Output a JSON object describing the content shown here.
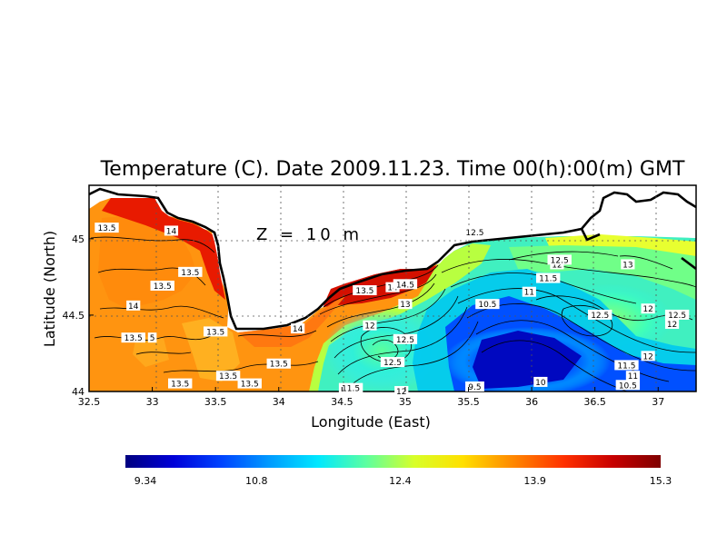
{
  "chart_data": {
    "type": "heatmap",
    "title": "Temperature (C). Date 2009.11.23. Time 00(h):00(m) GMT",
    "xlabel": "Longitude (East)",
    "ylabel": "Latitude (North)",
    "depth_label": "Z = 10 m",
    "xlim": [
      32.5,
      37.3
    ],
    "ylim": [
      44.0,
      45.35
    ],
    "x_ticks": [
      "32.5",
      "33",
      "33.5",
      "34",
      "34.5",
      "35",
      "35.5",
      "36",
      "36.5",
      "37"
    ],
    "y_ticks": [
      "44",
      "44.5",
      "45"
    ],
    "colorbar": {
      "min": 9.34,
      "max": 15.3,
      "tick_labels": [
        "9.34",
        "10.8",
        "12.4",
        "13.9",
        "15.3"
      ]
    },
    "contour_labels": [
      {
        "text": "13.5",
        "lon": 32.64,
        "lat": 45.07
      },
      {
        "text": "14",
        "lon": 33.15,
        "lat": 45.05
      },
      {
        "text": "13.5",
        "lon": 33.3,
        "lat": 44.78
      },
      {
        "text": "13.5",
        "lon": 33.08,
        "lat": 44.69
      },
      {
        "text": "14",
        "lon": 32.85,
        "lat": 44.56
      },
      {
        "text": "13.5",
        "lon": 32.85,
        "lat": 44.35
      },
      {
        "text": "5",
        "lon": 33.0,
        "lat": 44.35
      },
      {
        "text": "13.5",
        "lon": 33.5,
        "lat": 44.39
      },
      {
        "text": "14",
        "lon": 34.15,
        "lat": 44.41
      },
      {
        "text": "13.5",
        "lon": 34.0,
        "lat": 44.18
      },
      {
        "text": "13.5",
        "lon": 33.6,
        "lat": 44.1
      },
      {
        "text": "13.5",
        "lon": 33.77,
        "lat": 44.05
      },
      {
        "text": "13.5",
        "lon": 33.22,
        "lat": 44.05
      },
      {
        "text": "11.5",
        "lon": 34.57,
        "lat": 44.02
      },
      {
        "text": "12",
        "lon": 34.97,
        "lat": 44.0
      },
      {
        "text": "12.5",
        "lon": 34.9,
        "lat": 44.19
      },
      {
        "text": "12.5",
        "lon": 35.0,
        "lat": 44.34
      },
      {
        "text": "12",
        "lon": 34.72,
        "lat": 44.43
      },
      {
        "text": "13.5",
        "lon": 34.68,
        "lat": 44.66
      },
      {
        "text": "14",
        "lon": 34.9,
        "lat": 44.68
      },
      {
        "text": "14.5",
        "lon": 35.0,
        "lat": 44.7
      },
      {
        "text": "13",
        "lon": 35.0,
        "lat": 44.57
      },
      {
        "text": "12.5",
        "lon": 35.55,
        "lat": 45.04
      },
      {
        "text": "10.5",
        "lon": 35.65,
        "lat": 44.57
      },
      {
        "text": "11",
        "lon": 35.98,
        "lat": 44.65
      },
      {
        "text": "11.5",
        "lon": 36.13,
        "lat": 44.74
      },
      {
        "text": "12",
        "lon": 36.2,
        "lat": 44.83
      },
      {
        "text": "12.5",
        "lon": 36.22,
        "lat": 44.86
      },
      {
        "text": "13",
        "lon": 36.76,
        "lat": 44.83
      },
      {
        "text": "12.5",
        "lon": 36.54,
        "lat": 44.5
      },
      {
        "text": "12",
        "lon": 36.92,
        "lat": 44.54
      },
      {
        "text": "12.5",
        "lon": 37.15,
        "lat": 44.5
      },
      {
        "text": "12",
        "lon": 37.11,
        "lat": 44.44
      },
      {
        "text": "12",
        "lon": 36.92,
        "lat": 44.23
      },
      {
        "text": "11.5",
        "lon": 36.75,
        "lat": 44.17
      },
      {
        "text": "11",
        "lon": 36.8,
        "lat": 44.1
      },
      {
        "text": "10.5",
        "lon": 36.76,
        "lat": 44.04
      },
      {
        "text": "10",
        "lon": 36.07,
        "lat": 44.06
      },
      {
        "text": "9.5",
        "lon": 35.55,
        "lat": 44.03
      }
    ],
    "colors": {
      "ramp": [
        "#00007f",
        "#0000d8",
        "#0044ff",
        "#009cff",
        "#00e8ff",
        "#5cffa0",
        "#d8ff28",
        "#ffe000",
        "#ff8c00",
        "#ff3000",
        "#c80000",
        "#7f0000"
      ]
    }
  }
}
